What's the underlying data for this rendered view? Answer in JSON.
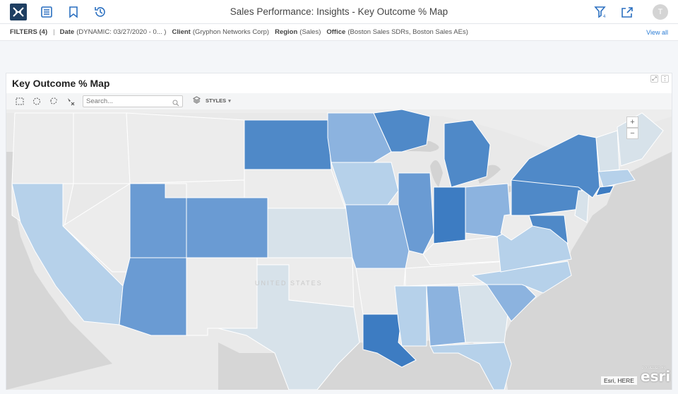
{
  "header": {
    "title": "Sales Performance: Insights - Key Outcome % Map",
    "avatar_initial": "T"
  },
  "filters": {
    "label": "FILTERS (4)",
    "separator": "|",
    "items": [
      {
        "key": "Date",
        "value": "(DYNAMIC: 03/27/2020 - 0... )"
      },
      {
        "key": "Client",
        "value": "(Gryphon Networks Corp)"
      },
      {
        "key": "Region",
        "value": "(Sales)"
      },
      {
        "key": "Office",
        "value": "(Boston Sales SDRs, Boston Sales AEs)"
      }
    ],
    "view_all": "View all"
  },
  "panel": {
    "title": "Key Outcome % Map",
    "search_placeholder": "Search...",
    "styles_label": "STYLES"
  },
  "map": {
    "country_label": "UNITED STATES",
    "zoom_in": "+",
    "zoom_out": "−",
    "attribution": "Esri, HERE",
    "powered_by": "POWERED BY",
    "esri_logo": "esri",
    "colors": {
      "darkest": "#3d7cc2",
      "dark": "#4f89c8",
      "medium": "#6a9bd3",
      "light": "#8cb3df",
      "lighter": "#b6d1ea",
      "lightest": "#d7e2ea",
      "none": "#ececec"
    }
  }
}
